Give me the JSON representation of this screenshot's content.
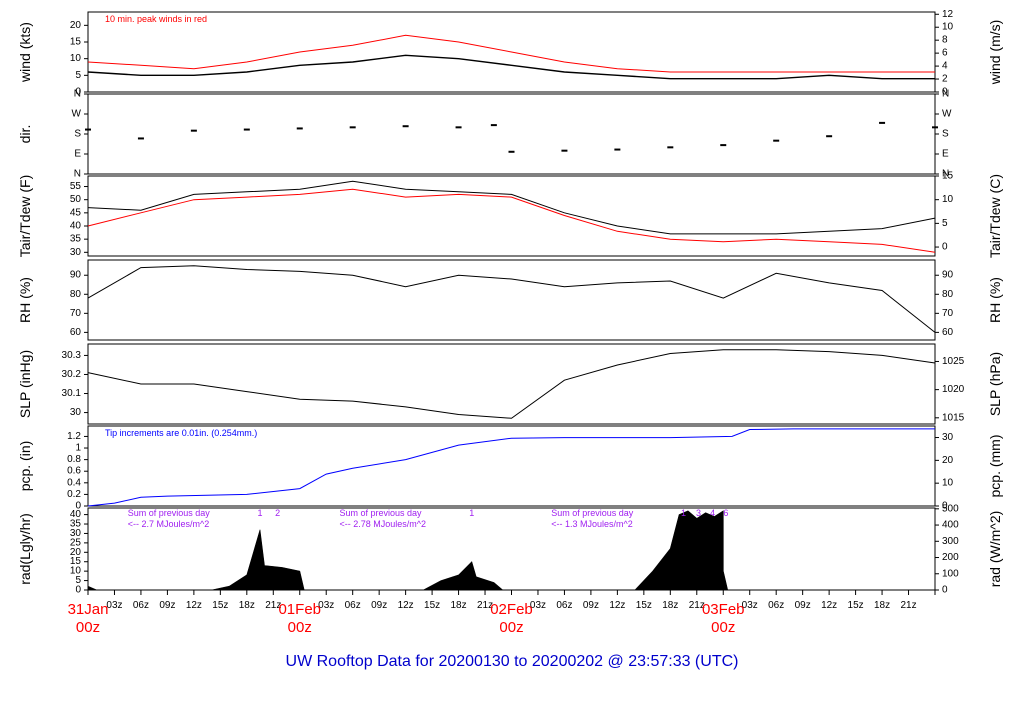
{
  "title": "UW Rooftop Data for 20200130  to  20200202 @ 23:57:33  (UTC)",
  "colors": {
    "red": "#ff0000",
    "blue": "#0000ff",
    "purple": "#a020f0",
    "title": "#0000cc"
  },
  "time_axis": {
    "hours": [
      "03z",
      "06z",
      "09z",
      "12z",
      "15z",
      "18z",
      "21z"
    ],
    "days": [
      {
        "date": "31Jan",
        "z": "00z"
      },
      {
        "date": "01Feb",
        "z": "00z"
      },
      {
        "date": "02Feb",
        "z": "00z"
      },
      {
        "date": "03Feb",
        "z": "00z"
      }
    ]
  },
  "chart_data": [
    {
      "type": "line",
      "ylabel": "wind (kts)",
      "ylabel_right": "wind (m/s)",
      "annotation": "10 min. peak winds in red",
      "ylim": [
        0,
        24
      ],
      "ylim_right": [
        0,
        12.35
      ],
      "yticks": [
        0,
        5,
        10,
        15,
        20
      ],
      "yticks_right": [
        0,
        2,
        4,
        6,
        8,
        10,
        12
      ],
      "x": [
        0,
        6,
        12,
        18,
        24,
        30,
        36,
        42,
        48,
        54,
        60,
        66,
        72,
        78,
        84,
        90,
        96
      ],
      "series": [
        {
          "values": [
            6,
            5,
            5,
            6,
            8,
            9,
            11,
            10,
            8,
            6,
            5,
            4,
            4,
            4,
            5,
            4,
            4
          ]
        },
        {
          "color": "#ff0000",
          "values": [
            9,
            8,
            7,
            9,
            12,
            14,
            17,
            15,
            12,
            9,
            7,
            6,
            6,
            6,
            6,
            6,
            6
          ]
        }
      ]
    },
    {
      "type": "scatter",
      "ylabel": "dir.",
      "yticks_labels": [
        "N",
        "E",
        "S",
        "W",
        "N"
      ],
      "yticks_labels_right": [
        "N",
        "E",
        "S",
        "W",
        "N"
      ],
      "ylim": [
        0,
        360
      ],
      "x": [
        0,
        6,
        12,
        18,
        24,
        30,
        36,
        42,
        46,
        48,
        54,
        60,
        66,
        72,
        78,
        84,
        90,
        96
      ],
      "series": [
        {
          "values": [
            200,
            160,
            195,
            200,
            205,
            210,
            215,
            210,
            220,
            100,
            105,
            110,
            120,
            130,
            150,
            170,
            230,
            210
          ]
        }
      ]
    },
    {
      "type": "line",
      "ylabel": "Tair/Tdew (F)",
      "ylabel_right": "Tair/Tdew (C)",
      "ylim": [
        28.6,
        59
      ],
      "ylim_right": [
        -1.89,
        15
      ],
      "yticks": [
        30,
        35,
        40,
        45,
        50,
        55
      ],
      "yticks_right": [
        0,
        5,
        10,
        15
      ],
      "x": [
        0,
        6,
        12,
        18,
        24,
        30,
        36,
        42,
        48,
        54,
        60,
        66,
        72,
        78,
        84,
        90,
        96
      ],
      "series": [
        {
          "name": "Tair",
          "values": [
            47,
            46,
            52,
            53,
            54,
            57,
            54,
            53,
            52,
            45,
            40,
            37,
            37,
            37,
            38,
            39,
            43
          ]
        },
        {
          "name": "Tdew",
          "color": "#ff0000",
          "values": [
            40,
            45,
            50,
            51,
            52,
            54,
            51,
            52,
            51,
            44,
            38,
            35,
            34,
            35,
            34,
            33,
            30
          ]
        }
      ]
    },
    {
      "type": "line",
      "ylabel": "RH (%)",
      "ylabel_right": "RH (%)",
      "ylim": [
        56,
        98
      ],
      "yticks": [
        60,
        70,
        80,
        90
      ],
      "yticks_right": [
        60,
        70,
        80,
        90
      ],
      "x": [
        0,
        6,
        12,
        18,
        24,
        30,
        36,
        42,
        48,
        54,
        60,
        66,
        72,
        78,
        84,
        90,
        96
      ],
      "series": [
        {
          "values": [
            78,
            94,
            95,
            93,
            92,
            90,
            84,
            90,
            88,
            84,
            86,
            87,
            78,
            91,
            86,
            82,
            60
          ]
        }
      ]
    },
    {
      "type": "line",
      "ylabel": "SLP (inHg)",
      "ylabel_right": "SLP (hPa)",
      "ylim": [
        29.94,
        30.36
      ],
      "ylim_right": [
        1013.9,
        1028.1
      ],
      "yticks": [
        30.0,
        30.1,
        30.2,
        30.3
      ],
      "yticks_right": [
        1015,
        1020,
        1025
      ],
      "x": [
        0,
        6,
        12,
        18,
        24,
        30,
        36,
        42,
        48,
        54,
        60,
        66,
        72,
        78,
        84,
        90,
        96
      ],
      "series": [
        {
          "values": [
            30.21,
            30.15,
            30.15,
            30.11,
            30.07,
            30.06,
            30.03,
            29.99,
            29.97,
            30.17,
            30.25,
            30.31,
            30.33,
            30.33,
            30.32,
            30.3,
            30.26
          ]
        }
      ]
    },
    {
      "type": "line",
      "ylabel": "pcp. (in)",
      "ylabel_right": "pcp. (mm)",
      "annotation": "Tip increments are 0.01in. (0.254mm.)",
      "ylim": [
        0,
        1.38
      ],
      "ylim_right": [
        0,
        35.05
      ],
      "yticks": [
        0,
        0.2,
        0.4,
        0.6,
        0.8,
        1.0,
        1.2
      ],
      "yticks_right": [
        0,
        10,
        20,
        30
      ],
      "x": [
        0,
        3,
        6,
        9,
        18,
        24,
        27,
        30,
        36,
        42,
        48,
        54,
        60,
        66,
        73,
        75,
        80,
        96
      ],
      "series": [
        {
          "color": "#0000ff",
          "values": [
            0,
            0.05,
            0.15,
            0.17,
            0.2,
            0.3,
            0.55,
            0.65,
            0.8,
            1.05,
            1.17,
            1.18,
            1.18,
            1.18,
            1.2,
            1.32,
            1.33,
            1.33
          ]
        }
      ]
    },
    {
      "type": "area",
      "ylabel": "rad(Lgly/hr)",
      "ylabel_right": "rad (W/m^2)",
      "ylim": [
        0,
        43.5
      ],
      "ylim_right": [
        0,
        505
      ],
      "yticks": [
        0,
        5,
        10,
        15,
        20,
        25,
        30,
        35,
        40
      ],
      "yticks_right": [
        0,
        100,
        200,
        300,
        400,
        500
      ],
      "day_totals": [
        {
          "line1": "Sum of previous day",
          "line2": "<-- 2.7 MJoules/m^2",
          "x": 4.5
        },
        {
          "line1": "Sum of previous day",
          "line2": "<-- 2.78 MJoules/m^2",
          "x": 28.5
        },
        {
          "line1": "Sum of previous day",
          "line2": "<-- 1.3 MJoules/m^2",
          "x": 52.5
        }
      ],
      "markers": [
        {
          "label": "1",
          "x": 19.5
        },
        {
          "label": "2",
          "x": 21.5
        },
        {
          "label": "1",
          "x": 43.5
        },
        {
          "label": "1",
          "x": 67.5
        },
        {
          "label": "3",
          "x": 69.2
        },
        {
          "label": "4",
          "x": 70.8
        },
        {
          "label": "6",
          "x": 72.3
        }
      ],
      "x": [
        0,
        1,
        14,
        16,
        18,
        19.5,
        20,
        22,
        24,
        24.5,
        38,
        40,
        42,
        43.5,
        44,
        46,
        47,
        62,
        64,
        66,
        67,
        68,
        69,
        70,
        71,
        72,
        72,
        72.5
      ],
      "series": [
        {
          "values": [
            2,
            0,
            0,
            2,
            8,
            32,
            13,
            12,
            10,
            0,
            0,
            5,
            8,
            15,
            7,
            4,
            0,
            0,
            10,
            22,
            40,
            42,
            38,
            41,
            39,
            42,
            10,
            0
          ]
        }
      ]
    }
  ]
}
